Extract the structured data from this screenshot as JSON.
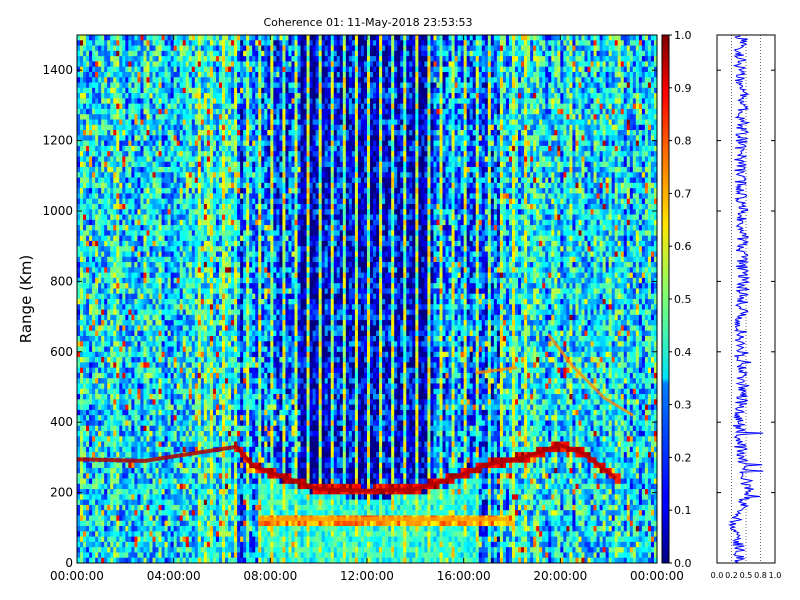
{
  "chart_data": [
    {
      "type": "heatmap",
      "title": "Coherence 01: 11-May-2018 23:53:53",
      "xlabel": "",
      "ylabel": "Range (Km)",
      "x_tick_labels": [
        "00:00:00",
        "04:00:00",
        "08:00:00",
        "12:00:00",
        "16:00:00",
        "20:00:00",
        "00:00:00"
      ],
      "x_range_hours": [
        0,
        24
      ],
      "y_tick_values": [
        0,
        200,
        400,
        600,
        800,
        1000,
        1200,
        1400
      ],
      "ylim": [
        0,
        1500
      ],
      "colormap": "jet",
      "colorbar": {
        "vmin": 0.0,
        "vmax": 1.0,
        "tick_labels": [
          "0.0",
          "0.1",
          "0.2",
          "0.3",
          "0.4",
          "0.5",
          "0.6",
          "0.7",
          "0.8",
          "0.9",
          "1.0"
        ]
      },
      "features": {
        "low_coherence_window_hours": [
          8.0,
          16.0
        ],
        "echo_layer_km": 125,
        "trace_points": [
          {
            "hour": 0.0,
            "range": 295
          },
          {
            "hour": 2.8,
            "range": 290
          },
          {
            "hour": 6.6,
            "range": 330
          },
          {
            "hour": 7.3,
            "range": 275
          },
          {
            "hour": 8.5,
            "range": 245
          },
          {
            "hour": 10.0,
            "range": 210
          },
          {
            "hour": 12.0,
            "range": 205
          },
          {
            "hour": 14.0,
            "range": 210
          },
          {
            "hour": 15.5,
            "range": 240
          },
          {
            "hour": 17.0,
            "range": 280
          },
          {
            "hour": 18.5,
            "range": 300
          },
          {
            "hour": 20.0,
            "range": 335
          },
          {
            "hour": 21.0,
            "range": 310
          },
          {
            "hour": 22.3,
            "range": 240
          }
        ],
        "weak_traces": [
          [
            {
              "hour": 16.5,
              "range": 540
            },
            {
              "hour": 18.2,
              "range": 555
            }
          ],
          [
            {
              "hour": 19.5,
              "range": 650
            },
            {
              "hour": 20.5,
              "range": 560
            },
            {
              "hour": 21.8,
              "range": 470
            },
            {
              "hour": 23.0,
              "range": 420
            }
          ]
        ]
      }
    },
    {
      "type": "line",
      "title": "",
      "xlabel": "",
      "ylabel": "",
      "xlim": [
        0.0,
        1.0
      ],
      "x_tick_labels": [
        "0.0",
        "0.2",
        "0.5",
        "0.8",
        "1.0"
      ],
      "x_tick_values": [
        0.0,
        0.25,
        0.5,
        0.75,
        1.0
      ],
      "ylim": [
        0,
        1500
      ],
      "y_tick_values": [
        0,
        200,
        400,
        600,
        800,
        1000,
        1200,
        1400
      ],
      "line_color": "#0000ff",
      "series_samples": [
        {
          "range": 20,
          "value": 0.4
        },
        {
          "range": 120,
          "value": 0.3
        },
        {
          "range": 200,
          "value": 0.55
        },
        {
          "range": 300,
          "value": 0.42
        },
        {
          "range": 400,
          "value": 0.38
        },
        {
          "range": 500,
          "value": 0.45
        },
        {
          "range": 600,
          "value": 0.4
        },
        {
          "range": 700,
          "value": 0.42
        },
        {
          "range": 800,
          "value": 0.45
        },
        {
          "range": 900,
          "value": 0.42
        },
        {
          "range": 1000,
          "value": 0.45
        },
        {
          "range": 1100,
          "value": 0.4
        },
        {
          "range": 1200,
          "value": 0.42
        },
        {
          "range": 1300,
          "value": 0.45
        },
        {
          "range": 1400,
          "value": 0.4
        },
        {
          "range": 1480,
          "value": 0.42
        }
      ]
    }
  ]
}
